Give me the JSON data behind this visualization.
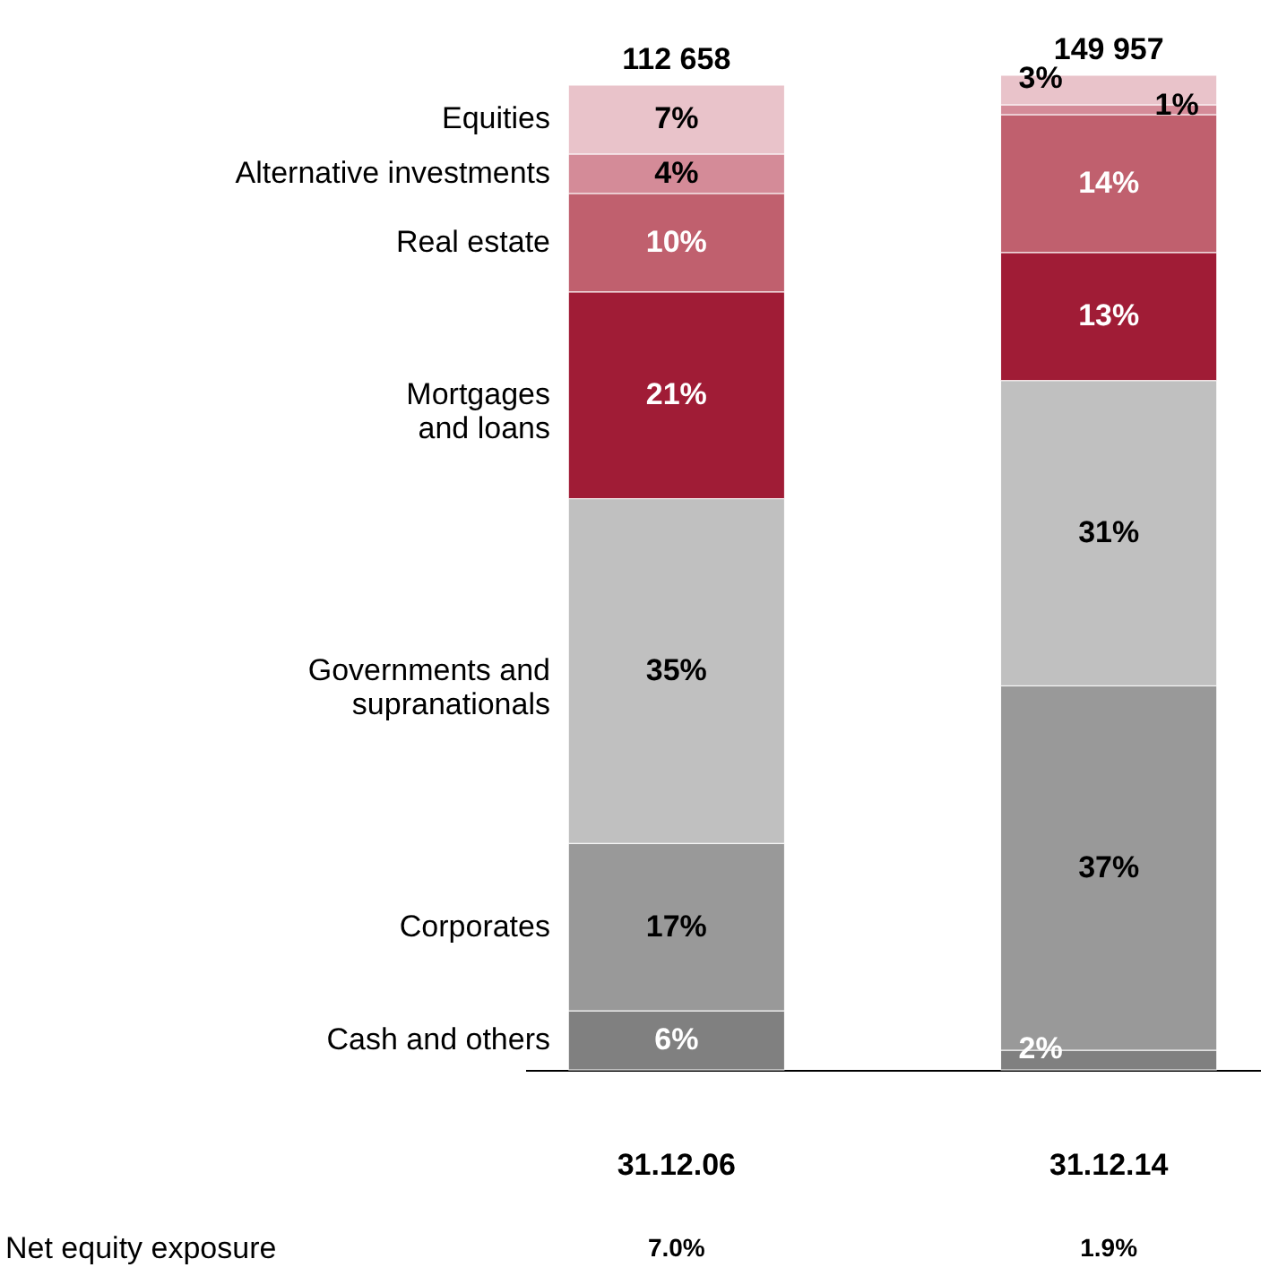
{
  "chart_data": {
    "type": "bar",
    "stacked": true,
    "categories": [
      "31.12.06",
      "31.12.14"
    ],
    "series": [
      {
        "name": "Cash and others",
        "color": "#808080",
        "values": [
          6,
          2
        ],
        "value_labels": [
          "6%",
          "2%"
        ]
      },
      {
        "name": "Corporates",
        "color": "#999999",
        "values": [
          17,
          37
        ],
        "value_labels": [
          "17%",
          "37%"
        ]
      },
      {
        "name": "Governments and\nsupranationals",
        "color": "#c0c0c0",
        "values": [
          35,
          31
        ],
        "value_labels": [
          "35%",
          "31%"
        ]
      },
      {
        "name": "Mortgages\nand loans",
        "color": "#a01c36",
        "values": [
          21,
          13
        ],
        "value_labels": [
          "21%",
          "13%"
        ]
      },
      {
        "name": "Real estate",
        "color": "#c0606e",
        "values": [
          10,
          14
        ],
        "value_labels": [
          "10%",
          "14%"
        ]
      },
      {
        "name": "Alternative investments",
        "color": "#d48b98",
        "values": [
          4,
          1
        ],
        "value_labels": [
          "4%",
          "1%"
        ]
      },
      {
        "name": "Equities",
        "color": "#e9c3ca",
        "values": [
          7,
          3
        ],
        "value_labels": [
          "7%",
          "3%"
        ]
      }
    ],
    "annotations": [
      {
        "text": "112 658",
        "x": "31.12.06",
        "y": 100
      },
      {
        "text": "149 957",
        "x": "31.12.14",
        "y": 101
      },
      "Net equity exposure",
      "7.0%",
      "1.9%"
    ],
    "grid": false
  }
}
